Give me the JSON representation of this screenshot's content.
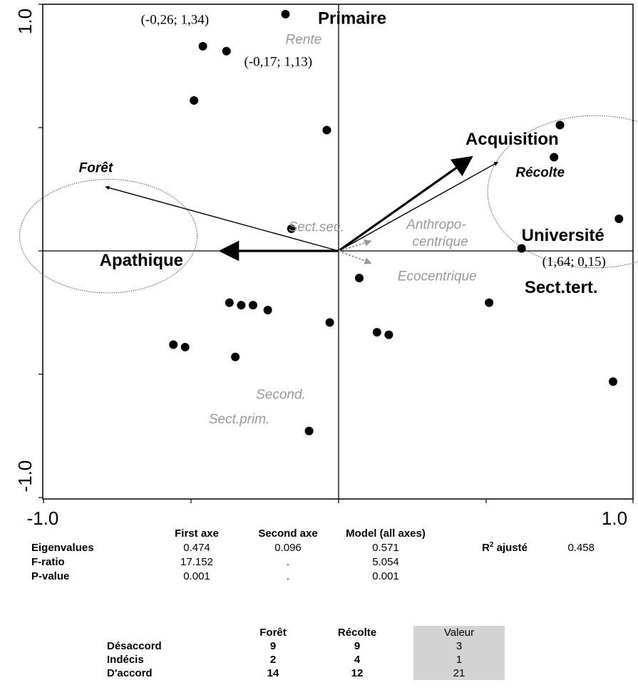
{
  "chart_data": {
    "type": "scatter",
    "title": "",
    "xlabel": "",
    "ylabel": "",
    "xlim": [
      -1.0,
      1.0
    ],
    "ylim": [
      -1.0,
      1.0
    ],
    "x_tick_labels": [
      "-1.0",
      "1.0"
    ],
    "y_tick_labels": [
      "1.0",
      "-1.0"
    ],
    "points": [
      {
        "x": -0.18,
        "y": 0.96
      },
      {
        "x": -0.46,
        "y": 0.83
      },
      {
        "x": -0.38,
        "y": 0.81
      },
      {
        "x": -0.49,
        "y": 0.61
      },
      {
        "x": -0.04,
        "y": 0.49
      },
      {
        "x": 0.75,
        "y": 0.51
      },
      {
        "x": 0.73,
        "y": 0.38
      },
      {
        "x": 0.95,
        "y": 0.13
      },
      {
        "x": -0.16,
        "y": 0.09
      },
      {
        "x": 0.62,
        "y": 0.01
      },
      {
        "x": 0.07,
        "y": -0.11
      },
      {
        "x": 0.51,
        "y": -0.21
      },
      {
        "x": -0.37,
        "y": -0.21
      },
      {
        "x": -0.33,
        "y": -0.22
      },
      {
        "x": -0.29,
        "y": -0.22
      },
      {
        "x": -0.24,
        "y": -0.24
      },
      {
        "x": -0.03,
        "y": -0.29
      },
      {
        "x": 0.13,
        "y": -0.33
      },
      {
        "x": 0.17,
        "y": -0.34
      },
      {
        "x": -0.56,
        "y": -0.38
      },
      {
        "x": -0.52,
        "y": -0.39
      },
      {
        "x": -0.35,
        "y": -0.43
      },
      {
        "x": 0.93,
        "y": -0.53
      },
      {
        "x": -0.1,
        "y": -0.73
      }
    ],
    "vectors": [
      {
        "name": "Acquisition",
        "x": 0.45,
        "y": 0.38,
        "style": "bold"
      },
      {
        "name": "Récolte",
        "x": 0.54,
        "y": 0.36,
        "style": "normal"
      },
      {
        "name": "Forêt",
        "x": -0.79,
        "y": 0.26,
        "style": "normal"
      },
      {
        "name": "Apathique",
        "x": -0.4,
        "y": 0.0,
        "style": "bold"
      }
    ],
    "gray_vectors": [
      {
        "name": "Anthropo-centrique",
        "x": 0.11,
        "y": 0.04
      },
      {
        "name": "Ecocentrique",
        "x": 0.11,
        "y": -0.05
      }
    ],
    "ellipses": [
      {
        "cx": -0.78,
        "cy": 0.06,
        "rx": 0.47,
        "ry": 0.47
      },
      {
        "cx": 0.87,
        "cy": 0.24,
        "rx": 0.57,
        "ry": 0.63
      }
    ],
    "labels": [
      {
        "text": "(-0,26; 1,34)",
        "x": -0.67,
        "y": 0.92,
        "kind": "coord"
      },
      {
        "text": "Primaire",
        "x": -0.07,
        "y": 0.92,
        "kind": "big"
      },
      {
        "text": "Rente",
        "x": -0.18,
        "y": 0.84,
        "kind": "gray"
      },
      {
        "text": "(-0,17; 1,13)",
        "x": -0.32,
        "y": 0.75,
        "kind": "coord"
      },
      {
        "text": "Acquisition",
        "x": 0.43,
        "y": 0.43,
        "kind": "big"
      },
      {
        "text": "Forêt",
        "x": -0.88,
        "y": 0.32,
        "kind": "boldital"
      },
      {
        "text": "Récolte",
        "x": 0.6,
        "y": 0.3,
        "kind": "boldital"
      },
      {
        "text": "Sect.sec.",
        "x": -0.17,
        "y": 0.08,
        "kind": "gray"
      },
      {
        "text": "Anthropo-",
        "x": 0.23,
        "y": 0.09,
        "kind": "gray"
      },
      {
        "text": "centrique",
        "x": 0.25,
        "y": 0.02,
        "kind": "gray"
      },
      {
        "text": "Université",
        "x": 0.62,
        "y": 0.04,
        "kind": "big"
      },
      {
        "text": "Apathique",
        "x": -0.81,
        "y": -0.06,
        "kind": "big"
      },
      {
        "text": "(1,64; 0,15)",
        "x": 0.69,
        "y": -0.06,
        "kind": "coord"
      },
      {
        "text": "Ecocentrique",
        "x": 0.2,
        "y": -0.12,
        "kind": "gray"
      },
      {
        "text": "Sect.tert.",
        "x": 0.63,
        "y": -0.17,
        "kind": "big"
      },
      {
        "text": "Second.",
        "x": -0.28,
        "y": -0.6,
        "kind": "gray"
      },
      {
        "text": "Sect.prim.",
        "x": -0.44,
        "y": -0.7,
        "kind": "gray"
      }
    ]
  },
  "stats": {
    "headers": [
      "",
      "First axe",
      "Second axe",
      "Model (all axes)"
    ],
    "rows": [
      {
        "label": "Eigenvalues",
        "first": "0.474",
        "second": "0.096",
        "model": "0.571"
      },
      {
        "label": "F-ratio",
        "first": "17.152",
        "second": ".",
        "model": "5.054"
      },
      {
        "label": "P-value",
        "first": "0.001",
        "second": ".",
        "model": "0.001"
      }
    ],
    "r2_label": "R",
    "r2_sup": "2",
    "r2_suffix": " ajusté",
    "r2_value": "0.458"
  },
  "table": {
    "headers": [
      "Forêt",
      "Récolte",
      "Valeur"
    ],
    "rows": [
      {
        "label": "Désaccord",
        "v": [
          "9",
          "9",
          "3"
        ]
      },
      {
        "label": "Indécis",
        "v": [
          "2",
          "4",
          "1"
        ]
      },
      {
        "label": "D'accord",
        "v": [
          "14",
          "12",
          "21"
        ]
      }
    ]
  }
}
